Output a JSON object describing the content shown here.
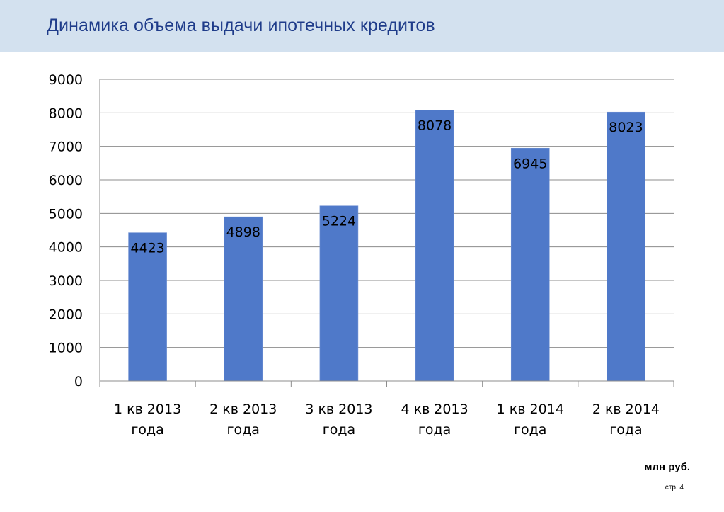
{
  "slide": {
    "title": "Динамика объема выдачи ипотечных кредитов",
    "unit_note": "млн руб.",
    "page_number": "стр. 4"
  },
  "colors": {
    "header_band": "#d3e1ef",
    "title_text": "#1f3c8a",
    "bar_fill": "#4f79c9",
    "grid_line": "#8c8c8c"
  },
  "chart_data": {
    "type": "bar",
    "title": "",
    "xlabel": "",
    "ylabel": "",
    "categories": [
      [
        "1 кв 2013",
        "года"
      ],
      [
        "2 кв 2013",
        "года"
      ],
      [
        "3 кв 2013",
        "года"
      ],
      [
        "4 кв 2013",
        "года"
      ],
      [
        "1 кв 2014",
        "года"
      ],
      [
        "2 кв 2014",
        "года"
      ]
    ],
    "values": [
      4423,
      4898,
      5224,
      8078,
      6945,
      8023
    ],
    "data_labels": [
      "4423",
      "4898",
      "5224",
      "8078",
      "6945",
      "8023"
    ],
    "ylim": [
      0,
      9000
    ],
    "yticks": [
      0,
      1000,
      2000,
      3000,
      4000,
      5000,
      6000,
      7000,
      8000,
      9000
    ],
    "ytick_labels": [
      "0",
      "1000",
      "2000",
      "3000",
      "4000",
      "5000",
      "6000",
      "7000",
      "8000",
      "9000"
    ],
    "grid": true,
    "legend": "none",
    "data_labels_position": "inside-top"
  }
}
